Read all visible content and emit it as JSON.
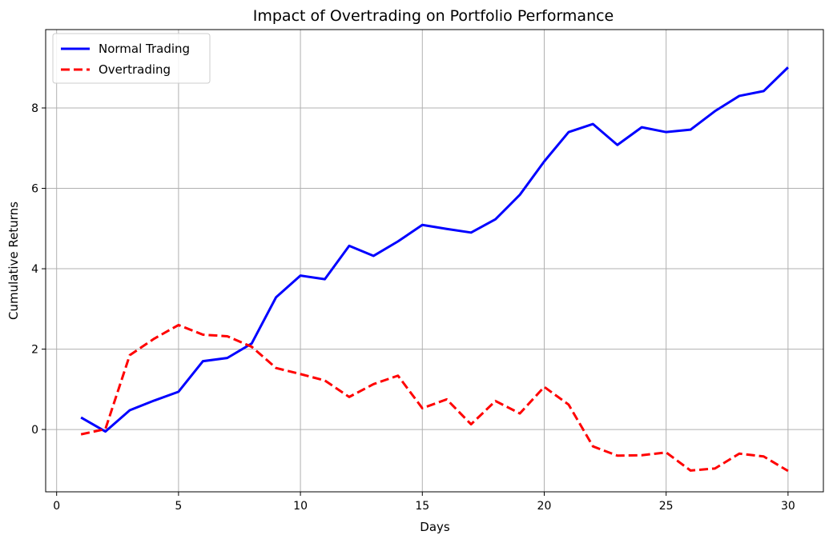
{
  "chart_data": {
    "type": "line",
    "title": "Impact of Overtrading on Portfolio Performance",
    "xlabel": "Days",
    "ylabel": "Cumulative Returns",
    "xlim": [
      -0.45,
      31.45
    ],
    "ylim": [
      -1.55,
      9.95
    ],
    "xticks": [
      0,
      5,
      10,
      15,
      20,
      25,
      30
    ],
    "yticks": [
      0,
      2,
      4,
      6,
      8
    ],
    "grid": true,
    "legend_position": "top-left",
    "x": [
      1,
      2,
      3,
      4,
      5,
      6,
      7,
      8,
      9,
      10,
      11,
      12,
      13,
      14,
      15,
      16,
      17,
      18,
      19,
      20,
      21,
      22,
      23,
      24,
      25,
      26,
      27,
      28,
      29,
      30
    ],
    "series": [
      {
        "name": "Normal Trading",
        "color": "#0000ff",
        "style": "solid",
        "values": [
          0.3,
          -0.05,
          0.48,
          0.72,
          0.94,
          1.7,
          1.78,
          2.14,
          3.29,
          3.83,
          3.74,
          4.57,
          4.32,
          4.68,
          5.09,
          4.99,
          4.9,
          5.23,
          5.84,
          6.67,
          7.4,
          7.6,
          7.08,
          7.52,
          7.4,
          7.46,
          7.92,
          8.3,
          8.42,
          9.01
        ]
      },
      {
        "name": "Overtrading",
        "color": "#ff0000",
        "style": "dashed",
        "values": [
          -0.12,
          0.01,
          1.85,
          2.26,
          2.6,
          2.36,
          2.32,
          2.06,
          1.53,
          1.38,
          1.22,
          0.81,
          1.13,
          1.34,
          0.53,
          0.75,
          0.13,
          0.71,
          0.4,
          1.06,
          0.62,
          -0.42,
          -0.65,
          -0.64,
          -0.57,
          -1.02,
          -0.97,
          -0.6,
          -0.67,
          -1.03
        ]
      }
    ]
  }
}
